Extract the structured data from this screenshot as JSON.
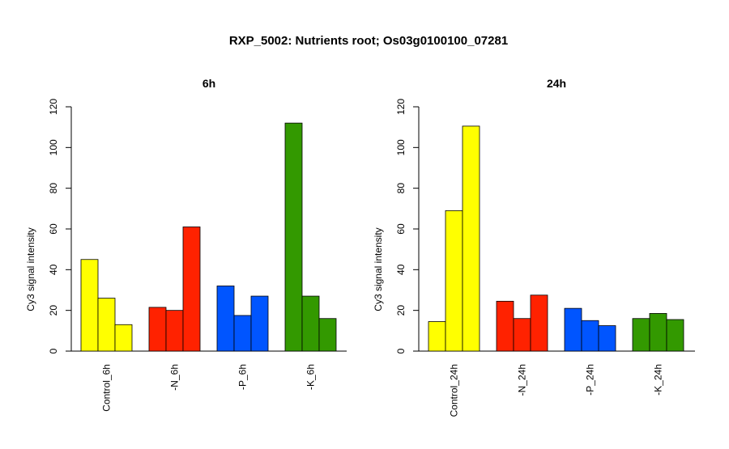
{
  "title": "RXP_5002: Nutrients root; Os03g0100100_07281",
  "chart_data": [
    {
      "type": "bar",
      "title": "6h",
      "ylabel": "Cy3 signal intensity",
      "ylim": [
        0,
        120
      ],
      "yticks": [
        0,
        20,
        40,
        60,
        80,
        100,
        120
      ],
      "groups": [
        {
          "label": "Control_6h",
          "color": "#ffff00",
          "values": [
            45,
            26,
            13
          ]
        },
        {
          "label": "-N_6h",
          "color": "#ff2200",
          "values": [
            21.5,
            20,
            61
          ]
        },
        {
          "label": "-P_6h",
          "color": "#0055ff",
          "values": [
            32,
            17.5,
            27
          ]
        },
        {
          "label": "-K_6h",
          "color": "#339900",
          "values": [
            112,
            27,
            16
          ]
        }
      ]
    },
    {
      "type": "bar",
      "title": "24h",
      "ylabel": "Cy3 signal intensity",
      "ylim": [
        0,
        120
      ],
      "yticks": [
        0,
        20,
        40,
        60,
        80,
        100,
        120
      ],
      "groups": [
        {
          "label": "Control_24h",
          "color": "#ffff00",
          "values": [
            14.5,
            69,
            110.5
          ]
        },
        {
          "label": "-N_24h",
          "color": "#ff2200",
          "values": [
            24.5,
            16,
            27.5
          ]
        },
        {
          "label": "-P_24h",
          "color": "#0055ff",
          "values": [
            21,
            15,
            12.5
          ]
        },
        {
          "label": "-K_24h",
          "color": "#339900",
          "values": [
            16,
            18.5,
            15.5
          ]
        }
      ]
    }
  ]
}
